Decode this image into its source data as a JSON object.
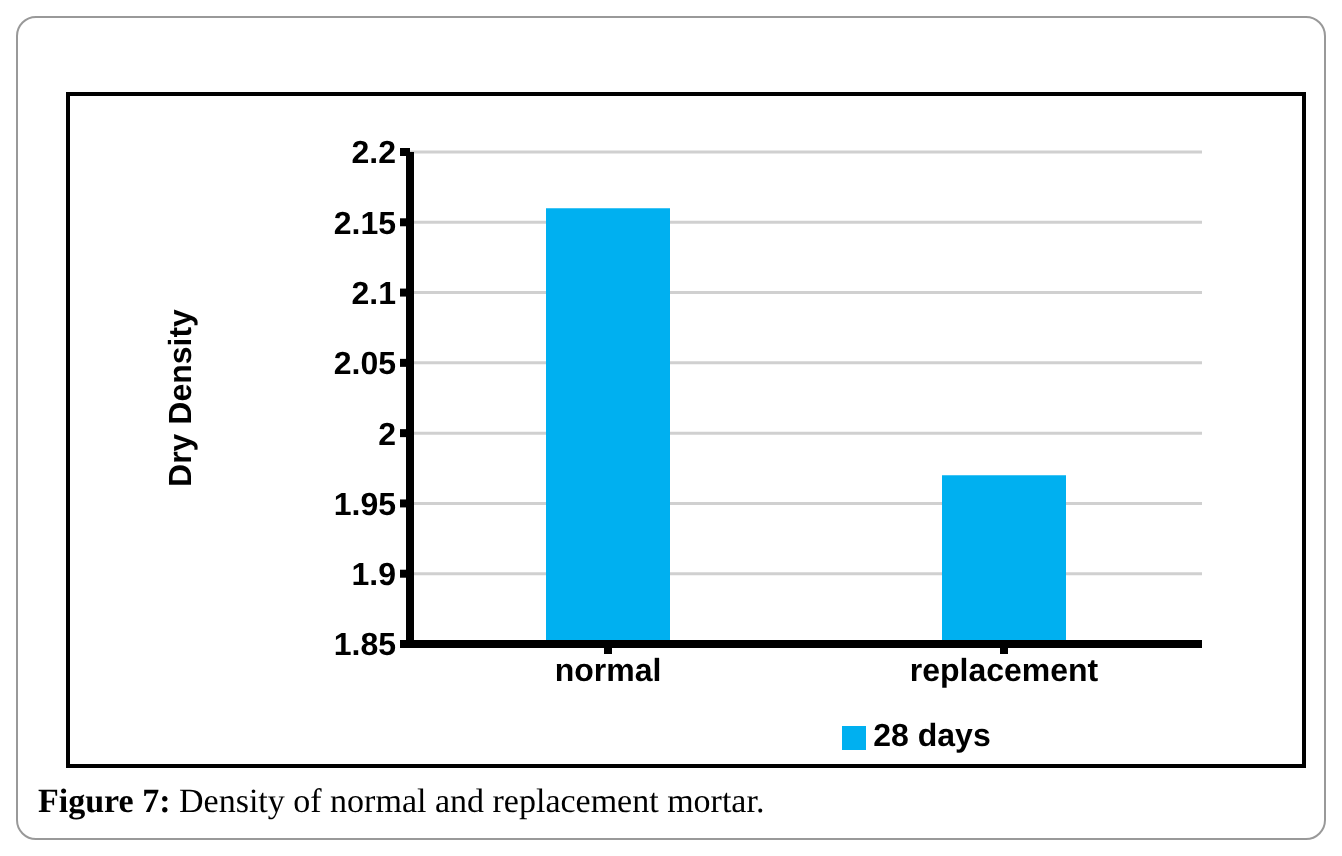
{
  "chart_data": {
    "type": "bar",
    "ylabel": "Dry Density",
    "categories": [
      "normal",
      "replacement"
    ],
    "series": [
      {
        "name": "28 days",
        "color": "#00b0f0",
        "values": [
          2.16,
          1.97
        ]
      }
    ],
    "ylim": [
      1.85,
      2.2
    ],
    "yticks": [
      1.85,
      1.9,
      1.95,
      2,
      2.05,
      2.1,
      2.15,
      2.2
    ],
    "grid": "y",
    "legend": "bottom",
    "annotations": [
      "Figure 7: Density of normal and replacement mortar."
    ]
  }
}
